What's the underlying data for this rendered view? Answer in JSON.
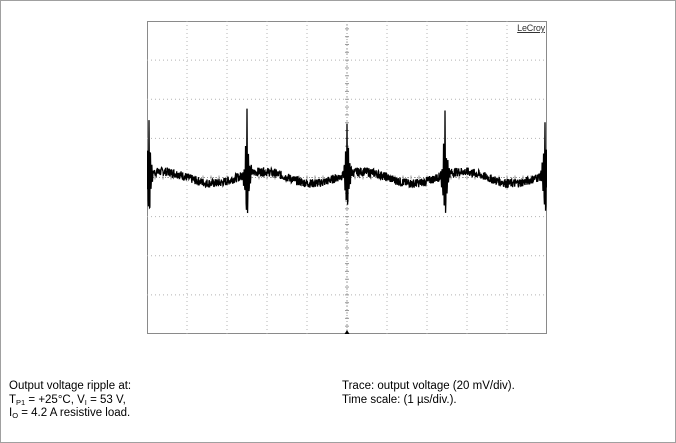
{
  "chart_data": {
    "type": "line",
    "instrument": "LeCroy",
    "grid": true,
    "divisions": {
      "x": 10,
      "y": 8
    },
    "trace_color": "#000000",
    "grid_color": "#b4b4b4",
    "series": [
      {
        "unit_x": "µs",
        "unit_y": "mV",
        "volts_per_div": 20,
        "time_per_div": 1,
        "ripple_offset_mV": 0,
        "spike_times_us": [
          0.05,
          2.5,
          5.0,
          7.45,
          9.95
        ],
        "spike_amplitude_mV": [
          30,
          30,
          28,
          30,
          28
        ],
        "baseline_wave_amplitude_mV": 3
      }
    ],
    "xlim": [
      0,
      10
    ],
    "ylim": [
      -80,
      80
    ]
  },
  "caption": {
    "left": {
      "line1": "Output voltage ripple at:",
      "line2_a": "T",
      "line2_sub": "P1",
      "line2_b": " = +25°C, V",
      "line2_sub2": "I",
      "line2_c": " = 53 V,",
      "line3_a": "I",
      "line3_sub": "O",
      "line3_b": " = 4.2 A resistive load."
    },
    "right": {
      "line1": "Trace: output voltage (20 mV/div).",
      "line2": "Time scale: (1 µs/div.)."
    }
  }
}
